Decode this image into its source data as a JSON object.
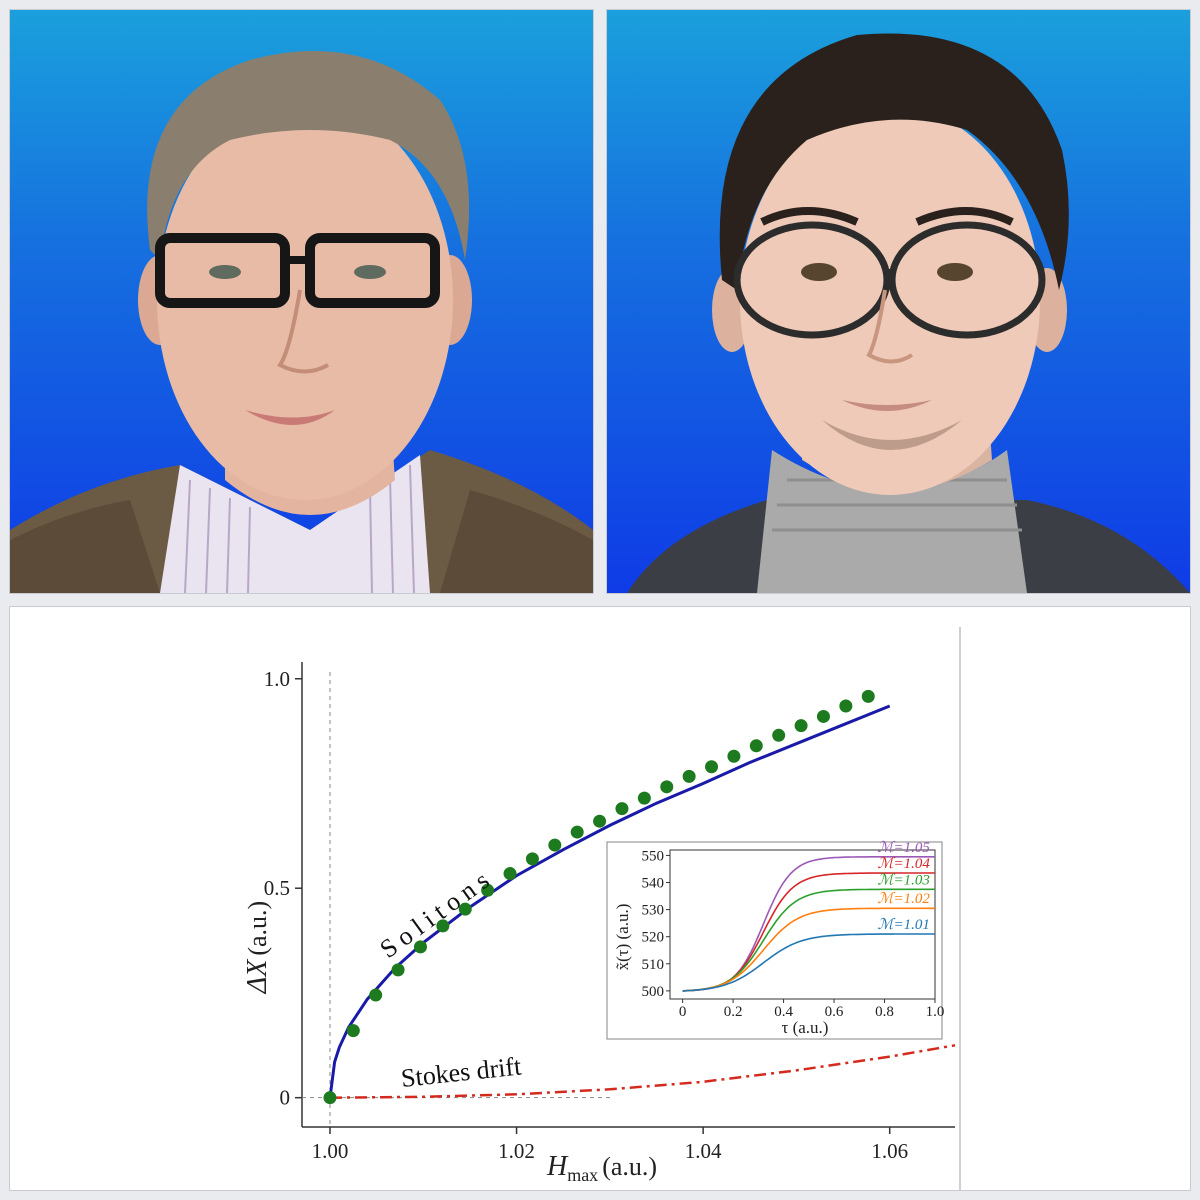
{
  "photos": [
    {
      "subject": "older man with grey hair, dark rectangular glasses, striped shirt, tweed jacket",
      "icon": "portrait-photo"
    },
    {
      "subject": "young man with dark hair, round glasses, grey turtleneck, dark jacket",
      "icon": "portrait-photo"
    }
  ],
  "colors": {
    "background_top": "#1aa0dc",
    "background_bottom": "#0f3be6",
    "soliton_curve": "#1a1aa8",
    "soliton_points": "#1e7a1e",
    "stokes_curve": "#d42a1e"
  },
  "chart_data": [
    {
      "type": "line",
      "xlabel_main": "H",
      "xlabel_sub": "max",
      "xlabel_unit": "(a.u.)",
      "ylabel_main": "ΔX",
      "ylabel_unit": "(a.u.)",
      "xlim": [
        0.997,
        1.067
      ],
      "ylim": [
        -0.07,
        1.04
      ],
      "xticks": [
        {
          "v": 1.0,
          "label": "1.00"
        },
        {
          "v": 1.02,
          "label": "1.02"
        },
        {
          "v": 1.04,
          "label": "1.04"
        },
        {
          "v": 1.06,
          "label": "1.06"
        }
      ],
      "yticks": [
        {
          "v": 0,
          "label": "0"
        },
        {
          "v": 0.5,
          "label": "0.5"
        },
        {
          "v": 1.0,
          "label": "1.0"
        }
      ],
      "grid": false,
      "annotations": {
        "solitons": "Solitons",
        "stokes": "Stokes drift"
      },
      "series": [
        {
          "style": "solid",
          "color": "#1a1aa8",
          "x": [
            1.0,
            1.0005,
            1.001,
            1.002,
            1.004,
            1.007,
            1.01,
            1.015,
            1.02,
            1.025,
            1.03,
            1.035,
            1.04,
            1.045,
            1.05,
            1.055,
            1.06
          ],
          "y": [
            0.0,
            0.085,
            0.12,
            0.168,
            0.235,
            0.31,
            0.37,
            0.455,
            0.53,
            0.592,
            0.65,
            0.703,
            0.75,
            0.8,
            0.845,
            0.89,
            0.935
          ]
        },
        {
          "style": "markers",
          "color": "#1e7a1e",
          "x": [
            1.0,
            1.0025,
            1.0049,
            1.0073,
            1.0097,
            1.0121,
            1.0145,
            1.0169,
            1.0193,
            1.0217,
            1.0241,
            1.0265,
            1.0289,
            1.0313,
            1.0337,
            1.0361,
            1.0385,
            1.0409,
            1.0433,
            1.0457,
            1.0481,
            1.0505,
            1.0529,
            1.0553,
            1.0577
          ],
          "y": [
            0.0,
            0.16,
            0.245,
            0.305,
            0.36,
            0.41,
            0.45,
            0.495,
            0.535,
            0.57,
            0.603,
            0.634,
            0.66,
            0.69,
            0.715,
            0.742,
            0.767,
            0.79,
            0.815,
            0.84,
            0.865,
            0.888,
            0.91,
            0.935,
            0.958
          ]
        },
        {
          "style": "dashdot",
          "color": "#d42a1e",
          "x": [
            1.0,
            1.01,
            1.02,
            1.03,
            1.04,
            1.05,
            1.06,
            1.067
          ],
          "y": [
            0.0,
            0.002,
            0.008,
            0.02,
            0.038,
            0.065,
            0.098,
            0.125
          ]
        }
      ],
      "reference_lines": {
        "vertical_x": 1.0,
        "horizontal_y": 0.0
      }
    },
    {
      "type": "line",
      "xlabel": "τ (a.u.)",
      "ylabel": "x̃(τ) (a.u.)",
      "xlim": [
        -0.05,
        1.0
      ],
      "ylim": [
        497,
        552
      ],
      "xticks": [
        {
          "v": 0,
          "label": "0"
        },
        {
          "v": 0.2,
          "label": "0.2"
        },
        {
          "v": 0.4,
          "label": "0.4"
        },
        {
          "v": 0.6,
          "label": "0.6"
        },
        {
          "v": 0.8,
          "label": "0.8"
        },
        {
          "v": 1.0,
          "label": "1.0"
        }
      ],
      "yticks": [
        {
          "v": 500,
          "label": "500"
        },
        {
          "v": 510,
          "label": "510"
        },
        {
          "v": 520,
          "label": "520"
        },
        {
          "v": 530,
          "label": "530"
        },
        {
          "v": 540,
          "label": "540"
        },
        {
          "v": 550,
          "label": "550"
        }
      ],
      "series": [
        {
          "name": "ℳ=1.05",
          "color": "#9b59b6",
          "final": 549.5
        },
        {
          "name": "ℳ=1.04",
          "color": "#d62728",
          "final": 543.5
        },
        {
          "name": "ℳ=1.03",
          "color": "#2ca02c",
          "final": 537.5
        },
        {
          "name": "ℳ=1.02",
          "color": "#ff7f0e",
          "final": 530.5
        },
        {
          "name": "ℳ=1.01",
          "color": "#1f77b4",
          "final": 521.0
        }
      ],
      "start_value": 500,
      "transition_center": 0.32
    }
  ]
}
